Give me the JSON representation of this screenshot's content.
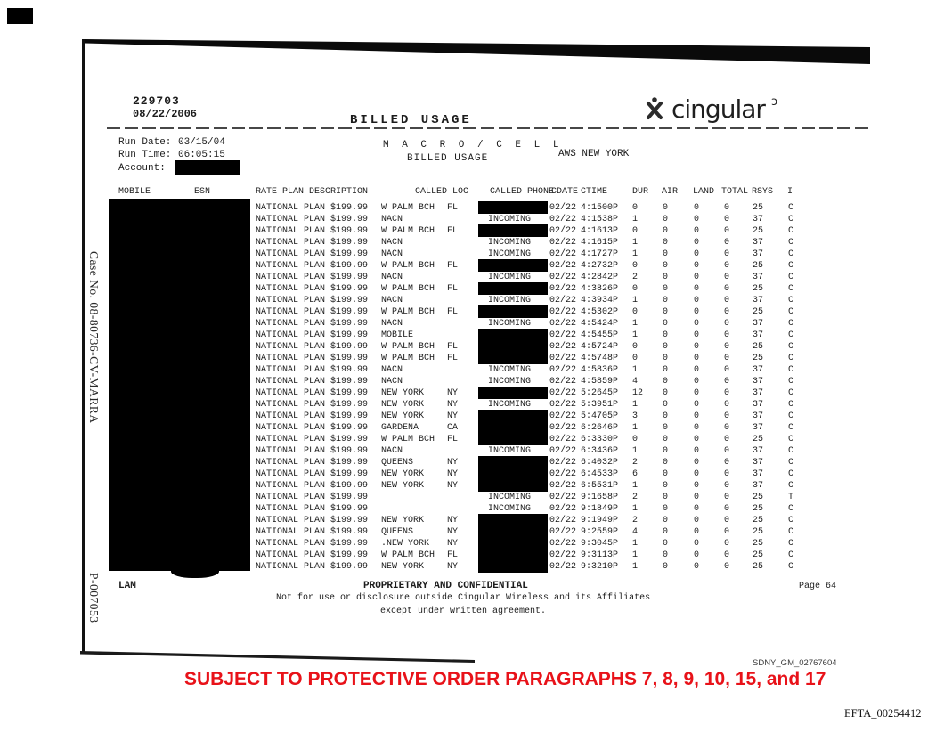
{
  "page": {
    "doc_number": "229703",
    "doc_date": "08/22/2006",
    "title": "BILLED USAGE",
    "run_date_label": "Run Date:",
    "run_date": "03/15/04",
    "run_time_label": "Run Time:",
    "run_time": "06:05:15",
    "account_label": "Account:",
    "system_line1": "M A C R O / C E L L",
    "system_line2": "BILLED USAGE",
    "market": "AWS NEW YORK"
  },
  "logo": {
    "text": "cingular",
    "mark": "ɔ",
    "icon": "cingular-x-figure-icon"
  },
  "table": {
    "columns": {
      "mobile": "MOBILE",
      "esn": "ESN",
      "rate_plan": "RATE PLAN DESCRIPTION",
      "called_loc": "CALLED LOC",
      "called_phone": "CALLED PHONE",
      "cdate": "CDATE",
      "ctime": "CTIME",
      "dur": "DUR",
      "air": "AIR",
      "land": "LAND",
      "total": "TOTAL",
      "rsys": "RSYS",
      "i": "I"
    },
    "rate_plan": "NATIONAL PLAN $199.99",
    "rows": [
      {
        "loc": "W PALM BCH",
        "st": "FL",
        "phone": "",
        "redacted": true,
        "date": "02/22",
        "time": "4:1500P",
        "dur": "0",
        "air": "0",
        "land": "0",
        "total": "0",
        "rsys": "25",
        "ind": "C"
      },
      {
        "loc": "NACN",
        "st": "",
        "phone": "INCOMING",
        "redacted": false,
        "date": "02/22",
        "time": "4:1538P",
        "dur": "1",
        "air": "0",
        "land": "0",
        "total": "0",
        "rsys": "37",
        "ind": "C"
      },
      {
        "loc": "W PALM BCH",
        "st": "FL",
        "phone": "",
        "redacted": true,
        "date": "02/22",
        "time": "4:1613P",
        "dur": "0",
        "air": "0",
        "land": "0",
        "total": "0",
        "rsys": "25",
        "ind": "C"
      },
      {
        "loc": "NACN",
        "st": "",
        "phone": "INCOMING",
        "redacted": false,
        "date": "02/22",
        "time": "4:1615P",
        "dur": "1",
        "air": "0",
        "land": "0",
        "total": "0",
        "rsys": "37",
        "ind": "C"
      },
      {
        "loc": "NACN",
        "st": "",
        "phone": "INCOMING",
        "redacted": false,
        "date": "02/22",
        "time": "4:1727P",
        "dur": "1",
        "air": "0",
        "land": "0",
        "total": "0",
        "rsys": "37",
        "ind": "C"
      },
      {
        "loc": "W PALM BCH",
        "st": "FL",
        "phone": "",
        "redacted": true,
        "date": "02/22",
        "time": "4:2732P",
        "dur": "0",
        "air": "0",
        "land": "0",
        "total": "0",
        "rsys": "25",
        "ind": "C"
      },
      {
        "loc": "NACN",
        "st": "",
        "phone": "INCOMING",
        "redacted": false,
        "date": "02/22",
        "time": "4:2842P",
        "dur": "2",
        "air": "0",
        "land": "0",
        "total": "0",
        "rsys": "37",
        "ind": "C"
      },
      {
        "loc": "W PALM BCH",
        "st": "FL",
        "phone": "",
        "redacted": true,
        "date": "02/22",
        "time": "4:3826P",
        "dur": "0",
        "air": "0",
        "land": "0",
        "total": "0",
        "rsys": "25",
        "ind": "C"
      },
      {
        "loc": "NACN",
        "st": "",
        "phone": "INCOMING",
        "redacted": false,
        "date": "02/22",
        "time": "4:3934P",
        "dur": "1",
        "air": "0",
        "land": "0",
        "total": "0",
        "rsys": "37",
        "ind": "C"
      },
      {
        "loc": "W PALM BCH",
        "st": "FL",
        "phone": "",
        "redacted": true,
        "date": "02/22",
        "time": "4:5302P",
        "dur": "0",
        "air": "0",
        "land": "0",
        "total": "0",
        "rsys": "25",
        "ind": "C"
      },
      {
        "loc": "NACN",
        "st": "",
        "phone": "INCOMING",
        "redacted": false,
        "date": "02/22",
        "time": "4:5424P",
        "dur": "1",
        "air": "0",
        "land": "0",
        "total": "0",
        "rsys": "37",
        "ind": "C"
      },
      {
        "loc": "MOBILE",
        "st": "",
        "phone": "",
        "redacted": true,
        "date": "02/22",
        "time": "4:5455P",
        "dur": "1",
        "air": "0",
        "land": "0",
        "total": "0",
        "rsys": "37",
        "ind": "C"
      },
      {
        "loc": "W PALM BCH",
        "st": "FL",
        "phone": "",
        "redacted": true,
        "date": "02/22",
        "time": "4:5724P",
        "dur": "0",
        "air": "0",
        "land": "0",
        "total": "0",
        "rsys": "25",
        "ind": "C"
      },
      {
        "loc": "W PALM BCH",
        "st": "FL",
        "phone": "",
        "redacted": true,
        "date": "02/22",
        "time": "4:5748P",
        "dur": "0",
        "air": "0",
        "land": "0",
        "total": "0",
        "rsys": "25",
        "ind": "C"
      },
      {
        "loc": "NACN",
        "st": "",
        "phone": "INCOMING",
        "redacted": false,
        "date": "02/22",
        "time": "4:5836P",
        "dur": "1",
        "air": "0",
        "land": "0",
        "total": "0",
        "rsys": "37",
        "ind": "C"
      },
      {
        "loc": "NACN",
        "st": "",
        "phone": "INCOMING",
        "redacted": false,
        "date": "02/22",
        "time": "4:5859P",
        "dur": "4",
        "air": "0",
        "land": "0",
        "total": "0",
        "rsys": "37",
        "ind": "C"
      },
      {
        "loc": "NEW YORK",
        "st": "NY",
        "phone": "",
        "redacted": true,
        "date": "02/22",
        "time": "5:2645P",
        "dur": "12",
        "air": "0",
        "land": "0",
        "total": "0",
        "rsys": "37",
        "ind": "C"
      },
      {
        "loc": "NEW YORK",
        "st": "NY",
        "phone": "INCOMING",
        "redacted": false,
        "date": "02/22",
        "time": "5:3951P",
        "dur": "1",
        "air": "0",
        "land": "0",
        "total": "0",
        "rsys": "37",
        "ind": "C"
      },
      {
        "loc": "NEW YORK",
        "st": "NY",
        "phone": "",
        "redacted": true,
        "date": "02/22",
        "time": "5:4705P",
        "dur": "3",
        "air": "0",
        "land": "0",
        "total": "0",
        "rsys": "37",
        "ind": "C"
      },
      {
        "loc": "GARDENA",
        "st": "CA",
        "phone": "",
        "redacted": true,
        "date": "02/22",
        "time": "6:2646P",
        "dur": "1",
        "air": "0",
        "land": "0",
        "total": "0",
        "rsys": "37",
        "ind": "C"
      },
      {
        "loc": "W PALM BCH",
        "st": "FL",
        "phone": "",
        "redacted": true,
        "date": "02/22",
        "time": "6:3330P",
        "dur": "0",
        "air": "0",
        "land": "0",
        "total": "0",
        "rsys": "25",
        "ind": "C"
      },
      {
        "loc": "NACN",
        "st": "",
        "phone": "INCOMING",
        "redacted": false,
        "date": "02/22",
        "time": "6:3436P",
        "dur": "1",
        "air": "0",
        "land": "0",
        "total": "0",
        "rsys": "37",
        "ind": "C"
      },
      {
        "loc": "QUEENS",
        "st": "NY",
        "phone": "",
        "redacted": true,
        "date": "02/22",
        "time": "6:4032P",
        "dur": "2",
        "air": "0",
        "land": "0",
        "total": "0",
        "rsys": "37",
        "ind": "C"
      },
      {
        "loc": "NEW YORK",
        "st": "NY",
        "phone": "",
        "redacted": true,
        "date": "02/22",
        "time": "6:4533P",
        "dur": "6",
        "air": "0",
        "land": "0",
        "total": "0",
        "rsys": "37",
        "ind": "C"
      },
      {
        "loc": "NEW YORK",
        "st": "NY",
        "phone": "",
        "redacted": true,
        "date": "02/22",
        "time": "6:5531P",
        "dur": "1",
        "air": "0",
        "land": "0",
        "total": "0",
        "rsys": "37",
        "ind": "C"
      },
      {
        "loc": "",
        "st": "",
        "phone": "INCOMING",
        "redacted": false,
        "date": "02/22",
        "time": "9:1658P",
        "dur": "2",
        "air": "0",
        "land": "0",
        "total": "0",
        "rsys": "25",
        "ind": "T"
      },
      {
        "loc": "",
        "st": "",
        "phone": "INCOMING",
        "redacted": false,
        "date": "02/22",
        "time": "9:1849P",
        "dur": "1",
        "air": "0",
        "land": "0",
        "total": "0",
        "rsys": "25",
        "ind": "C"
      },
      {
        "loc": "NEW YORK",
        "st": "NY",
        "phone": "",
        "redacted": true,
        "date": "02/22",
        "time": "9:1949P",
        "dur": "2",
        "air": "0",
        "land": "0",
        "total": "0",
        "rsys": "25",
        "ind": "C"
      },
      {
        "loc": "QUEENS",
        "st": "NY",
        "phone": "",
        "redacted": true,
        "date": "02/22",
        "time": "9:2559P",
        "dur": "4",
        "air": "0",
        "land": "0",
        "total": "0",
        "rsys": "25",
        "ind": "C"
      },
      {
        "loc": ".NEW YORK",
        "st": "NY",
        "phone": "",
        "redacted": true,
        "date": "02/22",
        "time": "9:3045P",
        "dur": "1",
        "air": "0",
        "land": "0",
        "total": "0",
        "rsys": "25",
        "ind": "C"
      },
      {
        "loc": "W PALM BCH",
        "st": "FL",
        "phone": "",
        "redacted": true,
        "date": "02/22",
        "time": "9:3113P",
        "dur": "1",
        "air": "0",
        "land": "0",
        "total": "0",
        "rsys": "25",
        "ind": "C"
      },
      {
        "loc": "NEW YORK",
        "st": "NY",
        "phone": "",
        "redacted": true,
        "date": "02/22",
        "time": "9:3210P",
        "dur": "1",
        "air": "0",
        "land": "0",
        "total": "0",
        "rsys": "25",
        "ind": "C"
      }
    ]
  },
  "footer": {
    "preparer": "LAM",
    "confidential": "PROPRIETARY AND CONFIDENTIAL",
    "page": "Page 64",
    "notice_line1": "Not for use or disclosure outside Cingular Wireless and its Affiliates",
    "notice_line2": "except under written agreement."
  },
  "stamps": {
    "case_number": "Case No. 08-80736-CV-MARRA",
    "exhibit_number": "P-007053",
    "bates_sdny": "SDNY_GM_02767604",
    "protective_order": "SUBJECT TO PROTECTIVE ORDER PARAGRAPHS 7, 8, 9, 10, 15, and 17",
    "bates_efta": "EFTA_00254412"
  },
  "colors": {
    "ink": "#1c1c1c",
    "redaction": "#000000",
    "stamp_red": "#e81219",
    "scan_edge": "#0a0a0a"
  }
}
